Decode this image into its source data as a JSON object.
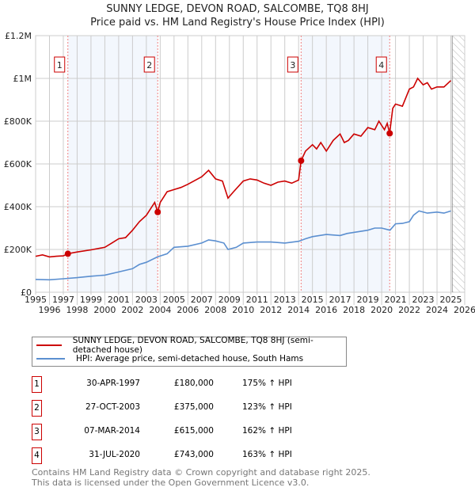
{
  "chart_data": {
    "type": "line",
    "title": "SUNNY LEDGE, DEVON ROAD, SALCOMBE, TQ8 8HJ",
    "subtitle": "Price paid vs. HM Land Registry's House Price Index (HPI)",
    "xlim": [
      1995,
      2026
    ],
    "ylim": [
      0,
      1200000
    ],
    "x_ticks": [
      "1995",
      "1996",
      "1997",
      "1998",
      "1999",
      "2000",
      "2001",
      "2002",
      "2003",
      "2004",
      "2005",
      "2006",
      "2007",
      "2008",
      "2009",
      "2010",
      "2011",
      "2012",
      "2013",
      "2014",
      "2015",
      "2016",
      "2017",
      "2018",
      "2019",
      "2020",
      "2021",
      "2022",
      "2023",
      "2024",
      "2025",
      "2026"
    ],
    "y_ticks": [
      {
        "v": 0,
        "label": "£0"
      },
      {
        "v": 200000,
        "label": "£200K"
      },
      {
        "v": 400000,
        "label": "£400K"
      },
      {
        "v": 600000,
        "label": "£600K"
      },
      {
        "v": 800000,
        "label": "£800K"
      },
      {
        "v": 1000000,
        "label": "£1M"
      },
      {
        "v": 1200000,
        "label": "£1.2M"
      }
    ],
    "grid": true,
    "forecast_start": 2025.1,
    "series": [
      {
        "name": "SUNNY LEDGE, DEVON ROAD, SALCOMBE, TQ8 8HJ (semi-detached house)",
        "color": "#cc0000",
        "x": [
          1995,
          1995.5,
          1996,
          1996.5,
          1997,
          1997.33,
          1998,
          1999,
          2000,
          2000.5,
          2001,
          2001.5,
          2002,
          2002.5,
          2003,
          2003.6,
          2003.82,
          2004,
          2004.5,
          2005,
          2005.5,
          2006,
          2007,
          2007.5,
          2008,
          2008.5,
          2008.9,
          2009.3,
          2010,
          2010.5,
          2011,
          2011.5,
          2012,
          2012.5,
          2013,
          2013.5,
          2014,
          2014.18,
          2014.5,
          2015,
          2015.3,
          2015.6,
          2016,
          2016.5,
          2017,
          2017.3,
          2017.6,
          2018,
          2018.5,
          2019,
          2019.5,
          2019.8,
          2020.2,
          2020.4,
          2020.58,
          2020.8,
          2021,
          2021.5,
          2022,
          2022.3,
          2022.6,
          2023,
          2023.3,
          2023.6,
          2024,
          2024.5,
          2025
        ],
        "y": [
          168000,
          175000,
          165000,
          168000,
          170000,
          180000,
          188000,
          198000,
          210000,
          230000,
          250000,
          255000,
          290000,
          330000,
          360000,
          420000,
          375000,
          420000,
          470000,
          480000,
          490000,
          505000,
          540000,
          570000,
          530000,
          520000,
          440000,
          470000,
          520000,
          530000,
          525000,
          510000,
          500000,
          515000,
          520000,
          510000,
          525000,
          615000,
          660000,
          690000,
          670000,
          700000,
          660000,
          710000,
          740000,
          700000,
          710000,
          740000,
          730000,
          770000,
          760000,
          800000,
          760000,
          790000,
          743000,
          860000,
          880000,
          870000,
          950000,
          960000,
          1000000,
          970000,
          980000,
          950000,
          960000,
          960000,
          990000
        ]
      },
      {
        "name": "HPI: Average price, semi-detached house, South Hams",
        "color": "#5b8fd0",
        "x": [
          1995,
          1996,
          1997,
          1998,
          1999,
          2000,
          2001,
          2002,
          2002.5,
          2003,
          2003.8,
          2004.5,
          2005,
          2006,
          2007,
          2007.5,
          2008,
          2008.6,
          2008.9,
          2009.5,
          2010,
          2011,
          2012,
          2013,
          2014,
          2014.5,
          2015,
          2016,
          2017,
          2017.5,
          2018,
          2019,
          2019.5,
          2020,
          2020.6,
          2021,
          2021.5,
          2022,
          2022.3,
          2022.7,
          2023.3,
          2024,
          2024.5,
          2025
        ],
        "y": [
          60000,
          58000,
          63000,
          68000,
          75000,
          80000,
          95000,
          110000,
          130000,
          140000,
          165000,
          180000,
          210000,
          215000,
          230000,
          245000,
          240000,
          230000,
          200000,
          210000,
          230000,
          235000,
          235000,
          230000,
          238000,
          250000,
          260000,
          270000,
          265000,
          275000,
          280000,
          290000,
          300000,
          300000,
          290000,
          320000,
          322000,
          330000,
          360000,
          380000,
          370000,
          375000,
          370000,
          380000
        ]
      }
    ],
    "sales": [
      {
        "n": "1",
        "x": 1997.33,
        "date": "30-APR-1997",
        "price": 180000,
        "price_label": "£180,000",
        "hpi": "175% ↑ HPI"
      },
      {
        "n": "2",
        "x": 2003.82,
        "date": "27-OCT-2003",
        "price": 375000,
        "price_label": "£375,000",
        "hpi": "123% ↑ HPI"
      },
      {
        "n": "3",
        "x": 2014.18,
        "date": "07-MAR-2014",
        "price": 615000,
        "price_label": "£615,000",
        "hpi": "162% ↑ HPI"
      },
      {
        "n": "4",
        "x": 2020.58,
        "date": "31-JUL-2020",
        "price": 743000,
        "price_label": "£743,000",
        "hpi": "163% ↑ HPI"
      }
    ]
  },
  "legend": {
    "price_label": "SUNNY LEDGE, DEVON ROAD, SALCOMBE, TQ8 8HJ (semi-detached house)",
    "hpi_label": "HPI: Average price, semi-detached house, South Hams"
  },
  "footer": {
    "line1": "Contains HM Land Registry data © Crown copyright and database right 2025.",
    "line2": "This data is licensed under the Open Government Licence v3.0."
  }
}
